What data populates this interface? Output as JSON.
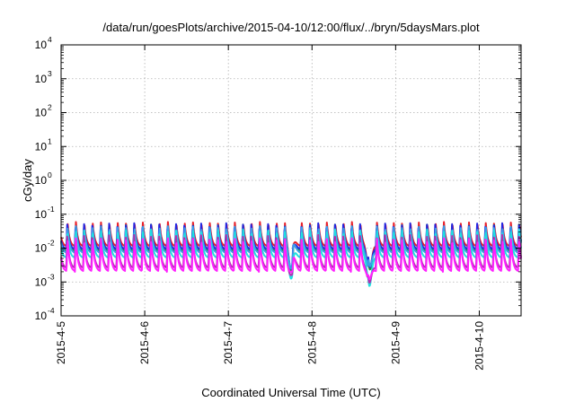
{
  "chart_data": {
    "type": "line",
    "title": "/data/run/goesPlots/archive/2015-04-10/12:00/flux/../bryn/5daysMars.plot",
    "xlabel": "Coordinated Universal Time (UTC)",
    "ylabel": "cGy/day",
    "y_scale": "log",
    "ylim": [
      0.0001,
      10000
    ],
    "y_ticks": [
      {
        "base": "10",
        "exp": "-4",
        "value": 0.0001
      },
      {
        "base": "10",
        "exp": "-3",
        "value": 0.001
      },
      {
        "base": "10",
        "exp": "-2",
        "value": 0.01
      },
      {
        "base": "10",
        "exp": "-1",
        "value": 0.1
      },
      {
        "base": "10",
        "exp": "0",
        "value": 1
      },
      {
        "base": "10",
        "exp": "1",
        "value": 10
      },
      {
        "base": "10",
        "exp": "2",
        "value": 100
      },
      {
        "base": "10",
        "exp": "3",
        "value": 1000
      },
      {
        "base": "10",
        "exp": "4",
        "value": 10000
      }
    ],
    "xlim": [
      "2015-04-05 00:00",
      "2015-04-10 12:00"
    ],
    "x_ticks": [
      {
        "label": "2015-4-5",
        "date": "2015-04-05"
      },
      {
        "label": "2015-4-6",
        "date": "2015-04-06"
      },
      {
        "label": "2015-4-7",
        "date": "2015-04-07"
      },
      {
        "label": "2015-4-8",
        "date": "2015-04-08"
      },
      {
        "label": "2015-4-9",
        "date": "2015-04-09"
      },
      {
        "label": "2015-4-10",
        "date": "2015-04-10"
      }
    ],
    "grid": true,
    "legend": "none",
    "pattern": {
      "period_hours": 2.4,
      "dips": [
        {
          "time": "2015-04-07 18:00",
          "min_value": 0.0005
        },
        {
          "time": "2015-04-08 16:30",
          "min_value": 0.0003
        }
      ]
    },
    "series": [
      {
        "color": "#e8202a",
        "peak": 0.06,
        "trough": 0.011
      },
      {
        "color": "#1fa02f",
        "peak": 0.05,
        "trough": 0.008
      },
      {
        "color": "#2424e0",
        "peak": 0.055,
        "trough": 0.009
      },
      {
        "color": "#3b9ee8",
        "peak": 0.045,
        "trough": 0.007
      },
      {
        "color": "#20e0e0",
        "peak": 0.035,
        "trough": 0.005
      },
      {
        "color": "#b030b0",
        "peak": 0.025,
        "trough": 0.0025
      },
      {
        "color": "#ff20ff",
        "peak": 0.02,
        "trough": 0.002
      }
    ]
  }
}
